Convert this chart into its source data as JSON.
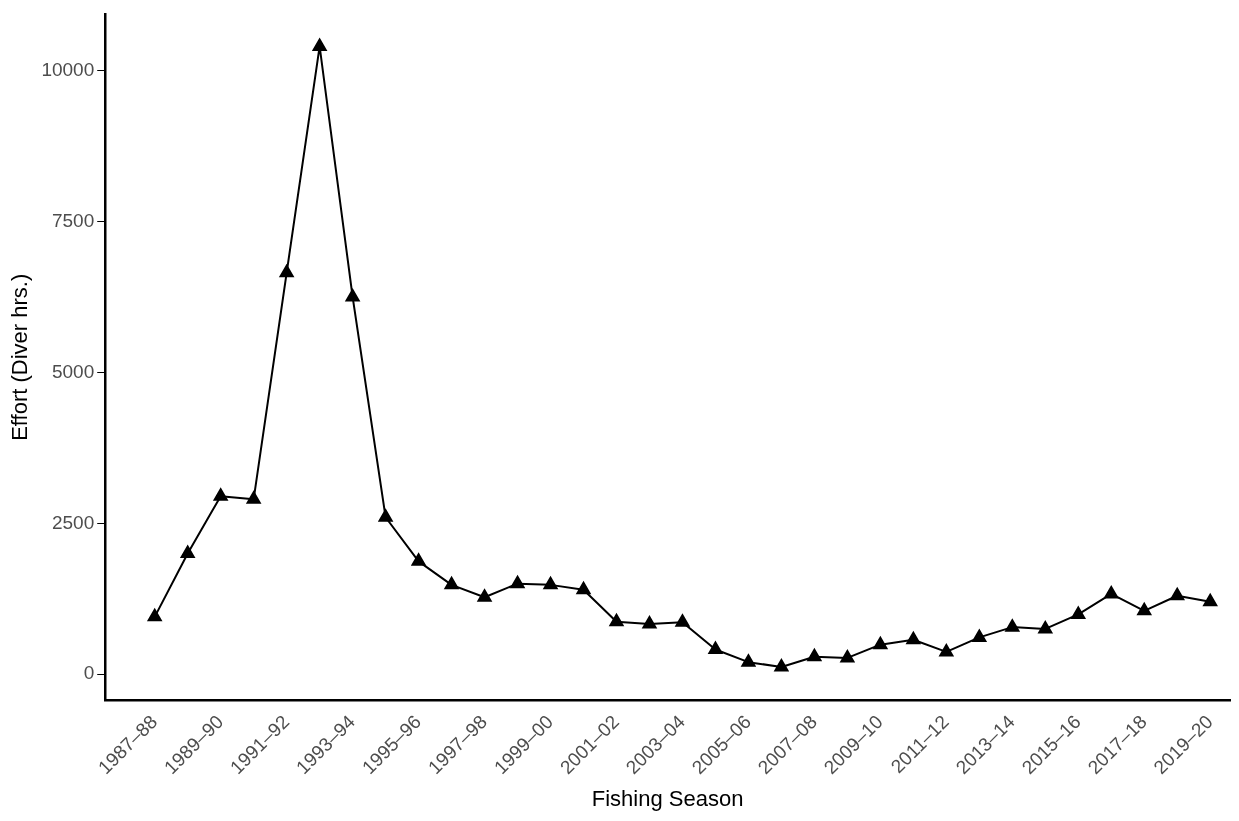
{
  "chart_data": {
    "type": "line",
    "xlabel": "Fishing Season",
    "ylabel": "Effort (Diver hrs.)",
    "categories": [
      "1987–88",
      null,
      "1989–90",
      null,
      "1991–92",
      null,
      "1993–94",
      null,
      "1995–96",
      null,
      "1997–98",
      null,
      "1999–00",
      null,
      "2001–02",
      null,
      "2003–04",
      null,
      "2005–06",
      null,
      "2007–08",
      null,
      "2009–10",
      null,
      "2011–12",
      null,
      "2013–14",
      null,
      "2015–16",
      null,
      "2017–18",
      null,
      "2019–20"
    ],
    "series": [
      {
        "color": "#000000",
        "values": [
          950,
          2000,
          2950,
          2900,
          6650,
          10400,
          6250,
          2600,
          1870,
          1480,
          1275,
          1500,
          1480,
          1400,
          870,
          830,
          860,
          410,
          200,
          120,
          290,
          270,
          490,
          570,
          370,
          610,
          780,
          750,
          990,
          1330,
          1050,
          1300,
          1200
        ]
      }
    ],
    "ylim": [
      -430,
      10930
    ],
    "yticks": [
      0,
      2500,
      5000,
      7500,
      10000
    ],
    "grid": false,
    "legend": false,
    "marker": "triangle",
    "line_style": "solid"
  }
}
